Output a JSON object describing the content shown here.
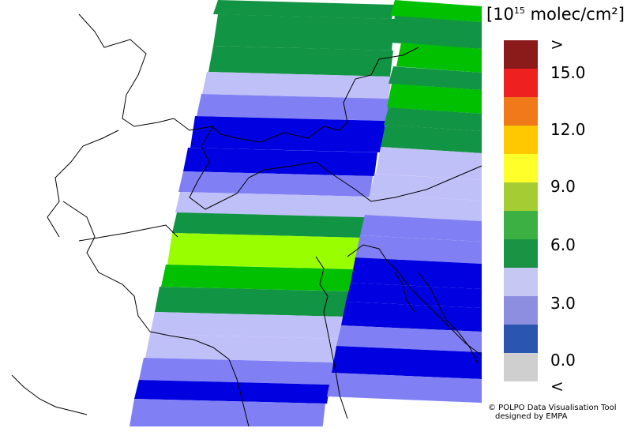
{
  "units": {
    "prefix": "[10",
    "exp": "15",
    "suffix": " molec/cm²]"
  },
  "legend": {
    "colors": [
      "#8b1a1a",
      "#ee2020",
      "#f07a1a",
      "#ffc800",
      "#ffff2a",
      "#a6cc33",
      "#3cb043",
      "#1a9444",
      "#c7c7f4",
      "#8e8ee0",
      "#2a55b0",
      "#cfcfcf"
    ],
    "labels": [
      ">",
      "15.0",
      "12.0",
      "9.0",
      "6.0",
      "3.0",
      "0.0",
      "<"
    ]
  },
  "map_colors": {
    "dark_green": "#119443",
    "green": "#00c000",
    "lime": "#99ff00",
    "light_lavender": "#c0c0f8",
    "lavender": "#8080f4",
    "blue": "#0000e0"
  },
  "credit": {
    "line1": "© POLPO Data Visualisation Tool",
    "line2": "designed by EMPA"
  }
}
